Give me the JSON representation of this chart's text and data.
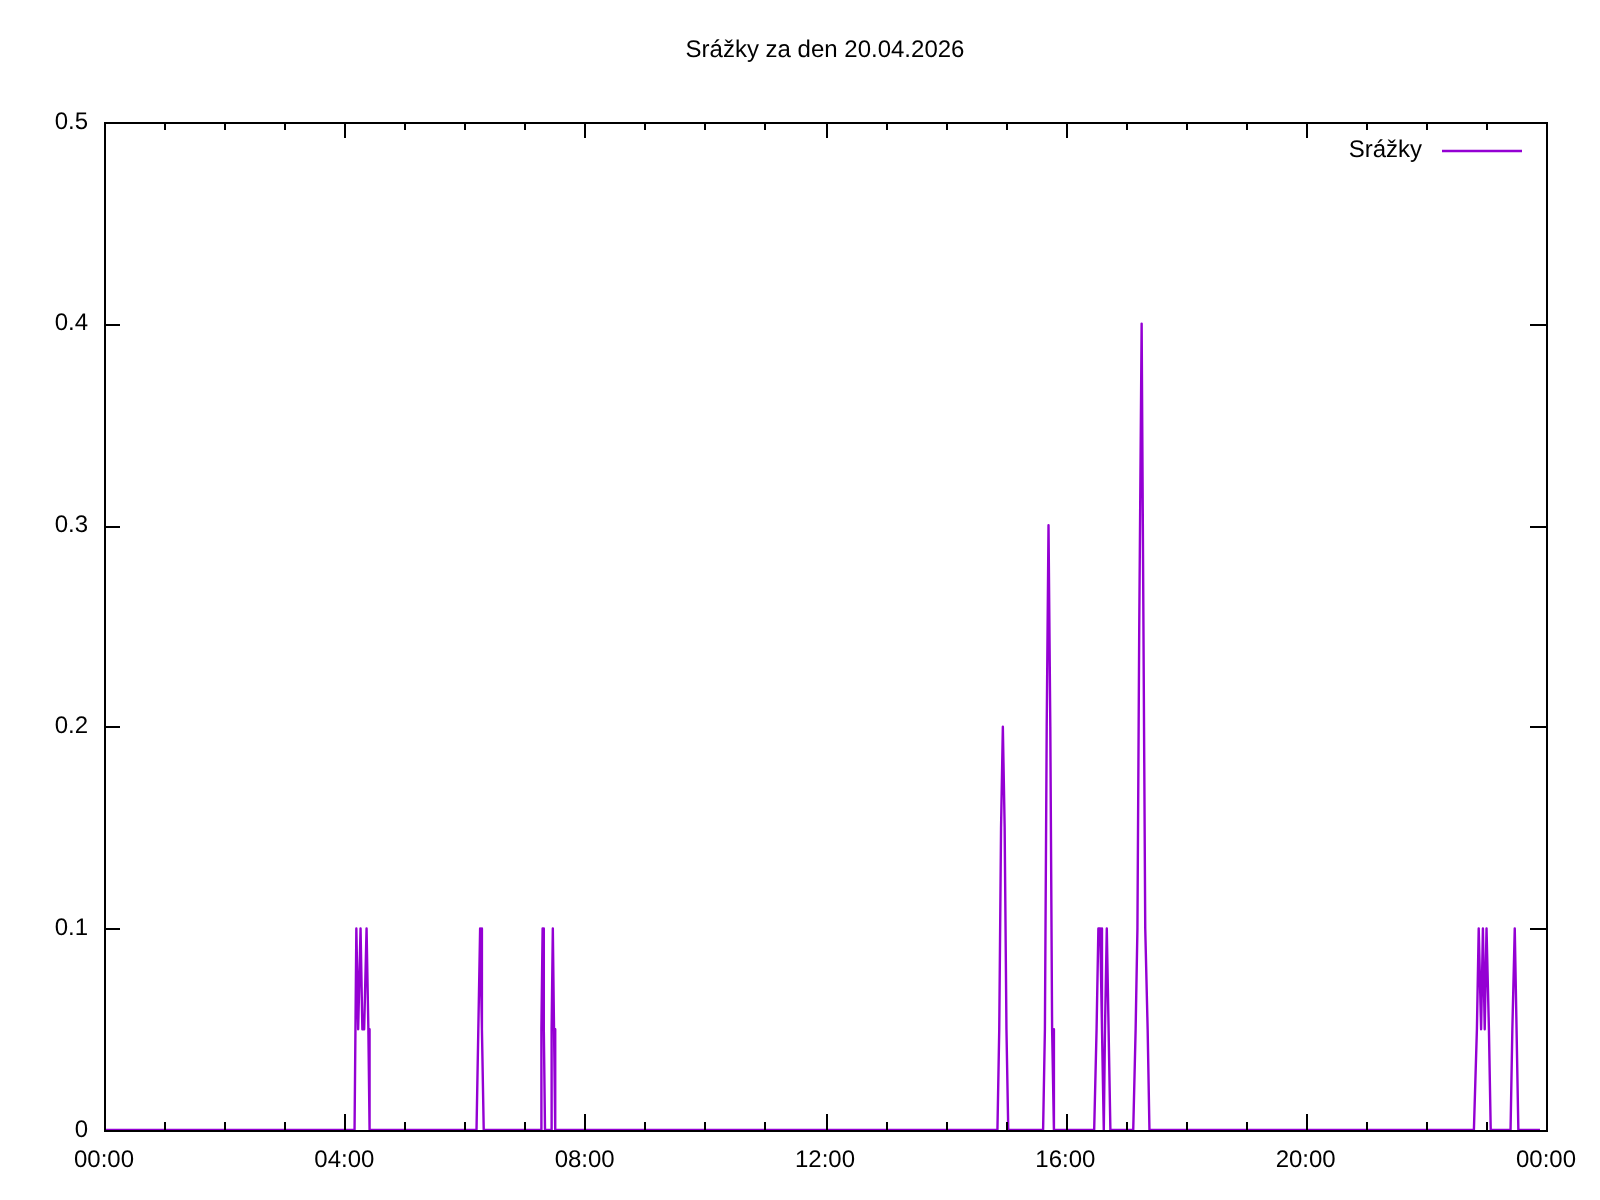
{
  "chart_data": {
    "type": "line",
    "title": "Srážky za den 20.04.2026",
    "x": [
      0,
      4.17,
      4.2,
      4.23,
      4.27,
      4.3,
      4.33,
      4.37,
      4.4,
      4.42,
      6.2,
      6.23,
      6.26,
      6.29,
      6.32,
      7.26,
      7.28,
      7.3,
      7.32,
      7.34,
      7.43,
      7.45,
      7.47,
      7.49,
      7.51,
      14.87,
      14.9,
      14.93,
      14.96,
      14.99,
      15.02,
      15.05,
      15.63,
      15.66,
      15.69,
      15.72,
      15.75,
      15.78,
      15.81,
      16.48,
      16.52,
      16.55,
      16.58,
      16.61,
      16.64,
      16.66,
      16.69,
      16.72,
      16.75,
      17.13,
      17.17,
      17.2,
      17.23,
      17.27,
      17.3,
      17.33,
      17.37,
      17.4,
      22.8,
      22.85,
      22.88,
      22.92,
      22.95,
      22.98,
      23.01,
      23.05,
      23.08,
      23.41,
      23.44,
      23.48,
      23.51,
      23.54,
      23.9
    ],
    "series": [
      {
        "name": "Srážky",
        "color": "#9400d3",
        "values": [
          0,
          0,
          0.1,
          0.05,
          0.1,
          0.05,
          0.05,
          0.1,
          0.05,
          0,
          0,
          0.05,
          0.1,
          0.05,
          0,
          0,
          0.05,
          0.1,
          0.05,
          0,
          0,
          0.05,
          0.1,
          0.05,
          0,
          0,
          0.05,
          0.15,
          0.2,
          0.15,
          0.05,
          0,
          0,
          0.05,
          0.2,
          0.3,
          0.2,
          0.05,
          0,
          0,
          0.05,
          0.1,
          0.1,
          0.05,
          0,
          0.05,
          0.1,
          0.05,
          0,
          0,
          0.05,
          0.1,
          0.25,
          0.4,
          0.25,
          0.1,
          0.05,
          0,
          0,
          0.05,
          0.1,
          0.05,
          0.1,
          0.05,
          0.1,
          0.05,
          0,
          0,
          0.05,
          0.1,
          0.05,
          0,
          0
        ]
      }
    ],
    "xlim": [
      0,
      24
    ],
    "xticks": [
      {
        "value": 0,
        "label": "00:00"
      },
      {
        "value": 1,
        "label": null
      },
      {
        "value": 2,
        "label": null
      },
      {
        "value": 3,
        "label": null
      },
      {
        "value": 4,
        "label": "04:00"
      },
      {
        "value": 5,
        "label": null
      },
      {
        "value": 6,
        "label": null
      },
      {
        "value": 7,
        "label": null
      },
      {
        "value": 8,
        "label": "08:00"
      },
      {
        "value": 9,
        "label": null
      },
      {
        "value": 10,
        "label": null
      },
      {
        "value": 11,
        "label": null
      },
      {
        "value": 12,
        "label": "12:00"
      },
      {
        "value": 13,
        "label": null
      },
      {
        "value": 14,
        "label": null
      },
      {
        "value": 15,
        "label": null
      },
      {
        "value": 16,
        "label": "16:00"
      },
      {
        "value": 17,
        "label": null
      },
      {
        "value": 18,
        "label": null
      },
      {
        "value": 19,
        "label": null
      },
      {
        "value": 20,
        "label": "20:00"
      },
      {
        "value": 21,
        "label": null
      },
      {
        "value": 22,
        "label": null
      },
      {
        "value": 23,
        "label": null
      },
      {
        "value": 24,
        "label": "00:00"
      }
    ],
    "ylim": [
      0,
      0.5
    ],
    "yticks": [
      0,
      0.1,
      0.2,
      0.3,
      0.4,
      0.5
    ],
    "grid": false,
    "legend": "top right",
    "marker": "none",
    "line_style": "solid"
  }
}
